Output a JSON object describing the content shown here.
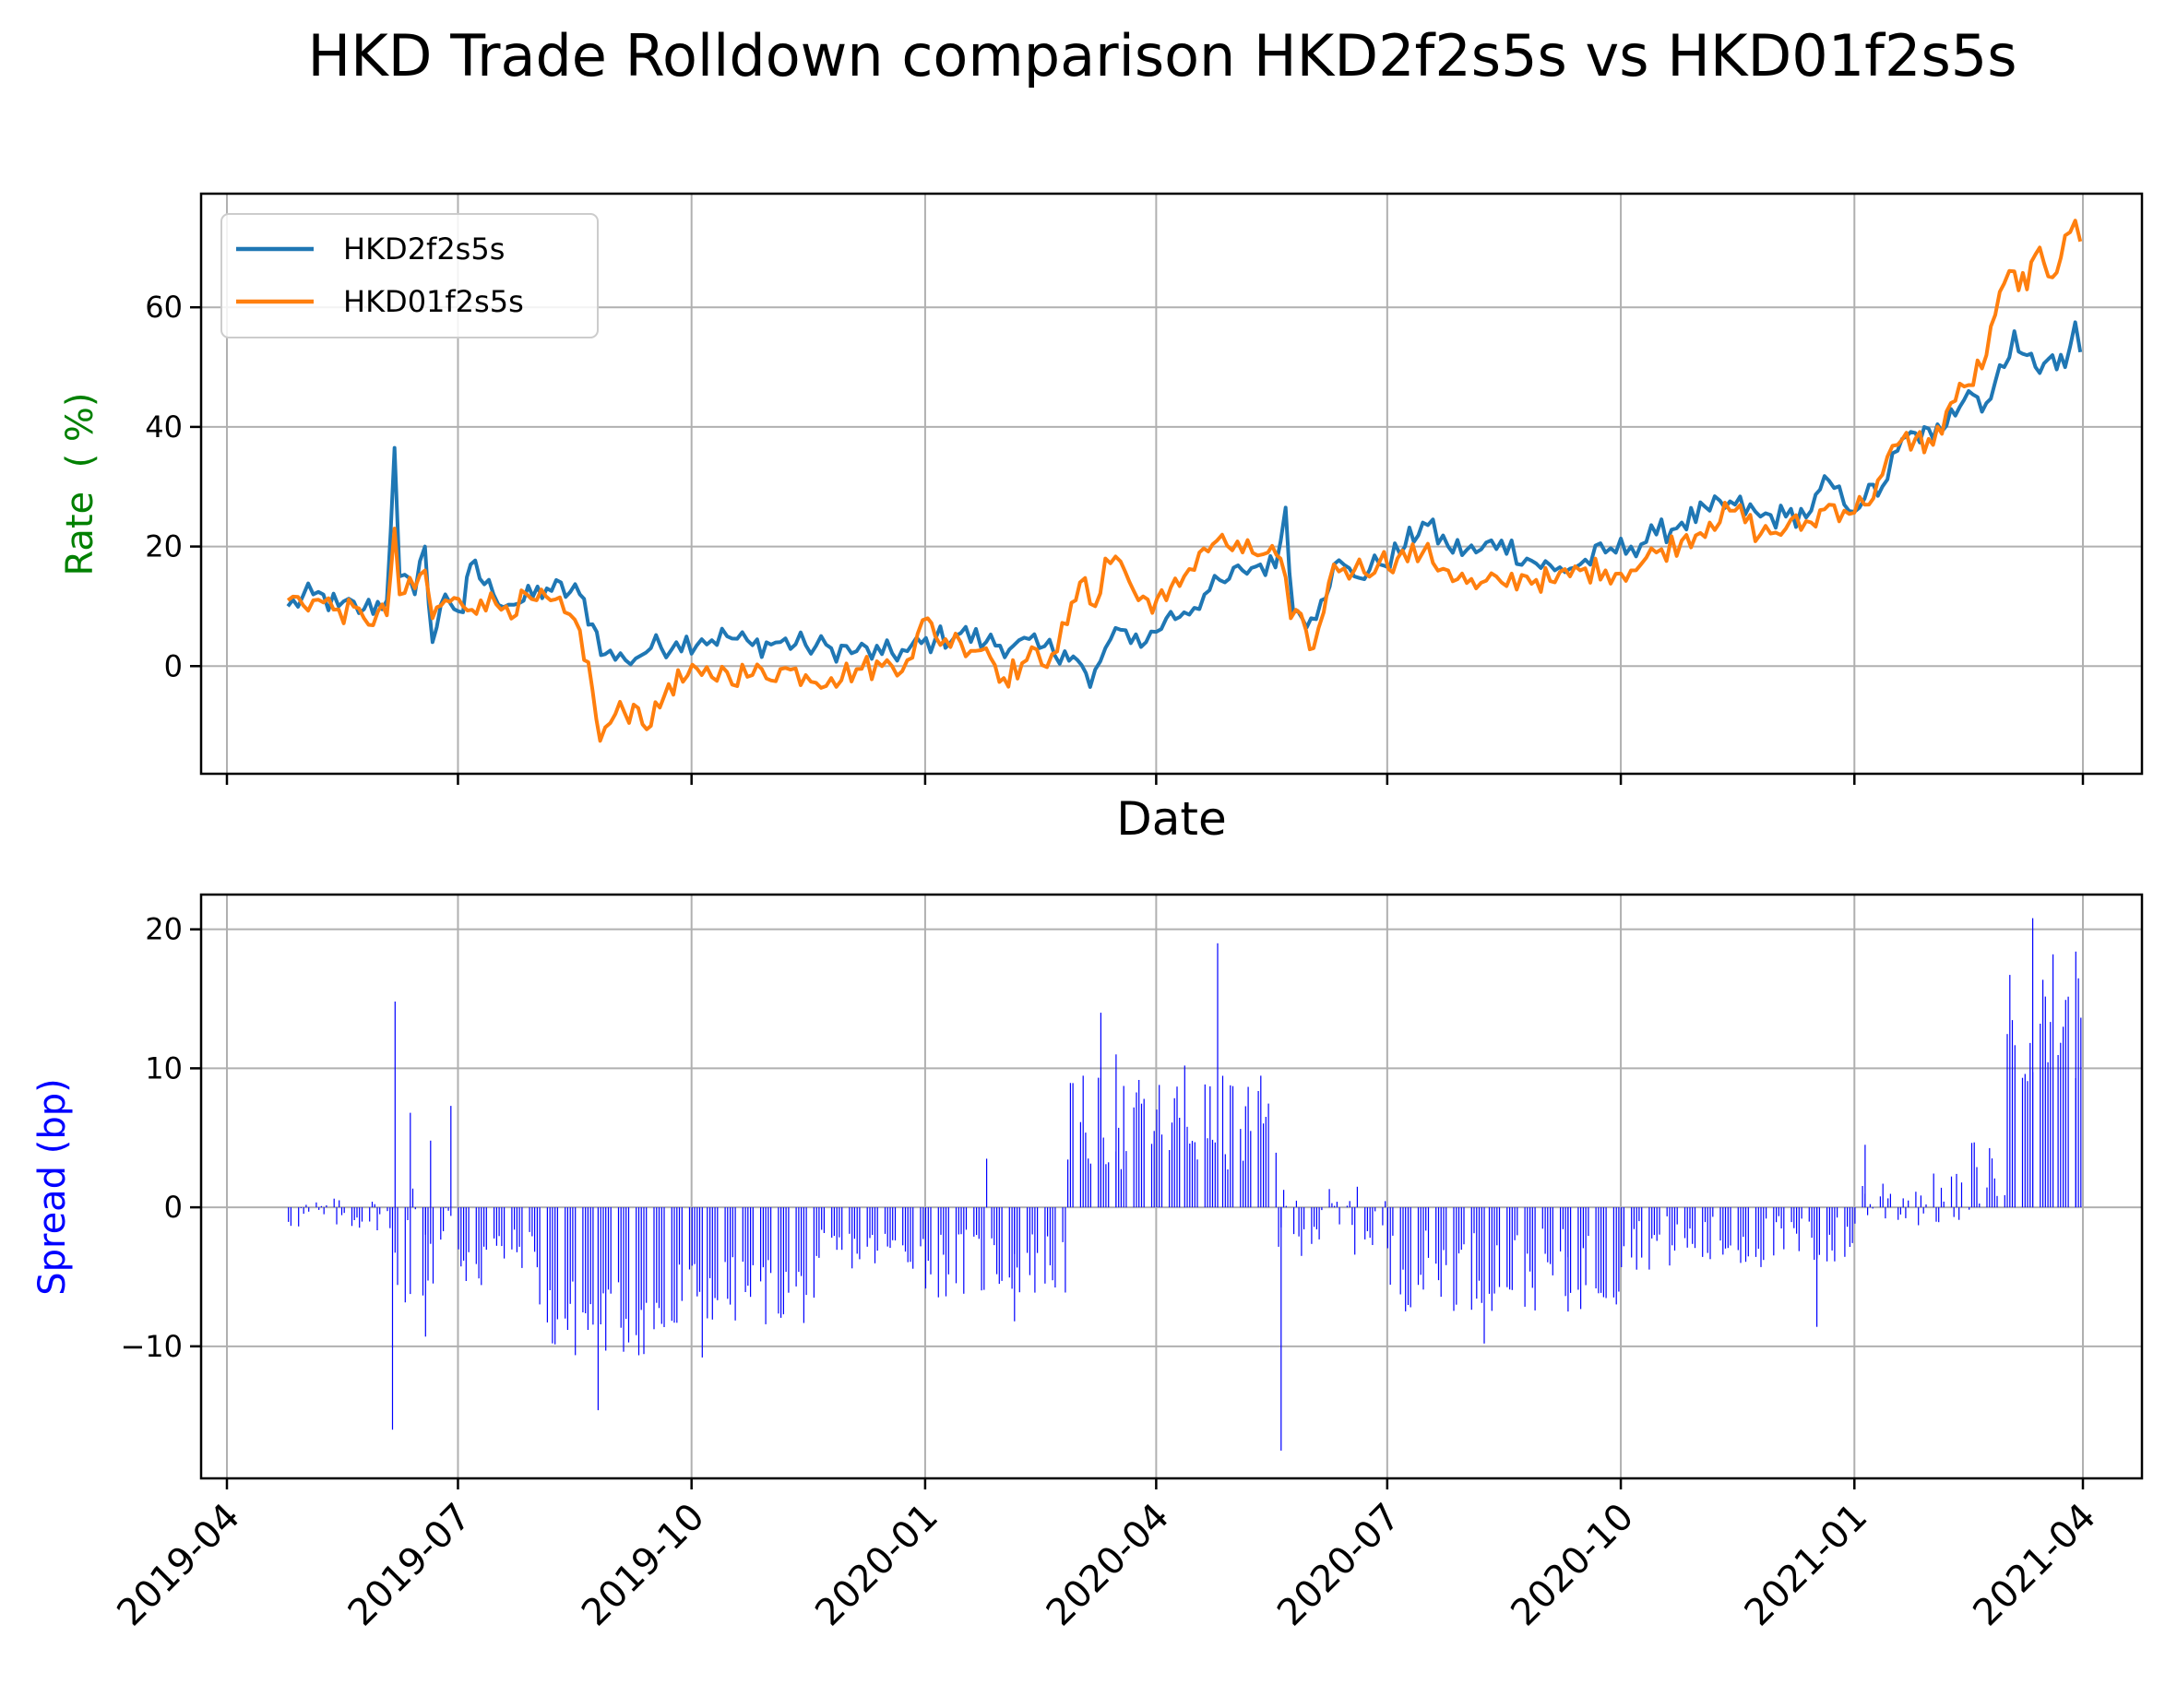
{
  "chart_data": [
    {
      "type": "line",
      "title": "HKD Trade Rolldown comparison HKD2f2s5s vs HKD01f2s5s",
      "xlabel": "Date",
      "ylabel": "Rate  ( %)",
      "ylabel_color": "#008000",
      "ylim": [
        -18,
        79
      ],
      "yticks": [
        0,
        20,
        40,
        60
      ],
      "xticks": [
        "2019-04",
        "2019-07",
        "2019-10",
        "2020-01",
        "2020-04",
        "2020-07",
        "2020-10",
        "2021-01",
        "2021-04"
      ],
      "grid": true,
      "legend_position": "top-left",
      "series": [
        {
          "name": "HKD2f2s5s",
          "color": "#1f77b4",
          "points": [
            [
              "2019-04-25",
              10
            ],
            [
              "2019-05-05",
              12
            ],
            [
              "2019-05-15",
              10
            ],
            [
              "2019-05-25",
              9.5
            ],
            [
              "2019-06-03",
              11
            ],
            [
              "2019-06-06",
              36.5
            ],
            [
              "2019-06-08",
              15
            ],
            [
              "2019-06-14",
              12
            ],
            [
              "2019-06-18",
              20
            ],
            [
              "2019-06-21",
              4
            ],
            [
              "2019-06-26",
              12
            ],
            [
              "2019-07-03",
              9
            ],
            [
              "2019-07-06",
              17
            ],
            [
              "2019-07-15",
              12
            ],
            [
              "2019-07-25",
              10.5
            ],
            [
              "2019-08-05",
              13
            ],
            [
              "2019-08-18",
              12
            ],
            [
              "2019-08-23",
              7
            ],
            [
              "2019-08-28",
              2
            ],
            [
              "2019-09-05",
              1
            ],
            [
              "2019-09-15",
              3
            ],
            [
              "2019-09-25",
              4
            ],
            [
              "2019-10-05",
              4.5
            ],
            [
              "2019-10-15",
              5
            ],
            [
              "2019-10-25",
              3.5
            ],
            [
              "2019-11-05",
              4
            ],
            [
              "2019-11-15",
              3.5
            ],
            [
              "2019-11-25",
              3
            ],
            [
              "2019-12-05",
              2.5
            ],
            [
              "2019-12-15",
              2
            ],
            [
              "2019-12-25",
              2.5
            ],
            [
              "2020-01-05",
              4.5
            ],
            [
              "2020-01-15",
              5.5
            ],
            [
              "2020-01-25",
              4
            ],
            [
              "2020-02-05",
              3.5
            ],
            [
              "2020-02-15",
              3
            ],
            [
              "2020-02-25",
              2.5
            ],
            [
              "2020-03-01",
              1
            ],
            [
              "2020-03-06",
              -3.5
            ],
            [
              "2020-03-12",
              3
            ],
            [
              "2020-03-20",
              6
            ],
            [
              "2020-03-28",
              4
            ],
            [
              "2020-04-05",
              8
            ],
            [
              "2020-04-12",
              9
            ],
            [
              "2020-04-20",
              12
            ],
            [
              "2020-04-28",
              14
            ],
            [
              "2020-05-05",
              16
            ],
            [
              "2020-05-12",
              17
            ],
            [
              "2020-05-18",
              16.5
            ],
            [
              "2020-05-22",
              26.5
            ],
            [
              "2020-05-25",
              9
            ],
            [
              "2020-06-01",
              8
            ],
            [
              "2020-06-05",
              11
            ],
            [
              "2020-06-10",
              17
            ],
            [
              "2020-06-18",
              15
            ],
            [
              "2020-06-28",
              17
            ],
            [
              "2020-07-08",
              20
            ],
            [
              "2020-07-15",
              24
            ],
            [
              "2020-07-25",
              20
            ],
            [
              "2020-08-05",
              19
            ],
            [
              "2020-08-15",
              21
            ],
            [
              "2020-08-25",
              18
            ],
            [
              "2020-09-05",
              16
            ],
            [
              "2020-09-15",
              17
            ],
            [
              "2020-09-25",
              19
            ],
            [
              "2020-10-05",
              20
            ],
            [
              "2020-10-15",
              22
            ],
            [
              "2020-10-25",
              24
            ],
            [
              "2020-11-05",
              26
            ],
            [
              "2020-11-15",
              27
            ],
            [
              "2020-11-25",
              25
            ],
            [
              "2020-12-05",
              25
            ],
            [
              "2020-12-15",
              26
            ],
            [
              "2020-12-22",
              31
            ],
            [
              "2020-12-28",
              27
            ],
            [
              "2021-01-05",
              28
            ],
            [
              "2021-01-12",
              30
            ],
            [
              "2021-01-18",
              36
            ],
            [
              "2021-01-25",
              39
            ],
            [
              "2021-02-01",
              38
            ],
            [
              "2021-02-08",
              43
            ],
            [
              "2021-02-15",
              46
            ],
            [
              "2021-02-22",
              44
            ],
            [
              "2021-03-01",
              50
            ],
            [
              "2021-03-05",
              56
            ],
            [
              "2021-03-10",
              52
            ],
            [
              "2021-03-15",
              49
            ],
            [
              "2021-03-20",
              52
            ],
            [
              "2021-03-25",
              50
            ],
            [
              "2021-03-29",
              57.5
            ],
            [
              "2021-03-31",
              52.5
            ]
          ]
        },
        {
          "name": "HKD01f2s5s",
          "color": "#ff7f0e",
          "points": [
            [
              "2019-04-25",
              11
            ],
            [
              "2019-05-05",
              11
            ],
            [
              "2019-05-15",
              9.5
            ],
            [
              "2019-05-25",
              8
            ],
            [
              "2019-06-03",
              8.5
            ],
            [
              "2019-06-06",
              23
            ],
            [
              "2019-06-08",
              12
            ],
            [
              "2019-06-14",
              13
            ],
            [
              "2019-06-18",
              16
            ],
            [
              "2019-06-21",
              8
            ],
            [
              "2019-06-26",
              11
            ],
            [
              "2019-07-03",
              10
            ],
            [
              "2019-07-10",
              11
            ],
            [
              "2019-07-20",
              10
            ],
            [
              "2019-08-01",
              11
            ],
            [
              "2019-08-12",
              9
            ],
            [
              "2019-08-18",
              6
            ],
            [
              "2019-08-23",
              -4
            ],
            [
              "2019-08-26",
              -12.5
            ],
            [
              "2019-09-01",
              -8
            ],
            [
              "2019-09-10",
              -7
            ],
            [
              "2019-09-15",
              -10
            ],
            [
              "2019-09-22",
              -3
            ],
            [
              "2019-10-05",
              -1.5
            ],
            [
              "2019-10-15",
              -1
            ],
            [
              "2019-10-25",
              -1.5
            ],
            [
              "2019-11-05",
              -0.5
            ],
            [
              "2019-11-15",
              -1.5
            ],
            [
              "2019-11-25",
              -2
            ],
            [
              "2019-12-05",
              -0.5
            ],
            [
              "2019-12-15",
              0
            ],
            [
              "2019-12-25",
              1
            ],
            [
              "2020-01-02",
              8
            ],
            [
              "2020-01-05",
              5
            ],
            [
              "2020-01-15",
              4
            ],
            [
              "2020-01-25",
              3
            ],
            [
              "2020-02-01",
              -2
            ],
            [
              "2020-02-10",
              1
            ],
            [
              "2020-02-20",
              2
            ],
            [
              "2020-02-26",
              7
            ],
            [
              "2020-03-02",
              14
            ],
            [
              "2020-03-08",
              10
            ],
            [
              "2020-03-12",
              18
            ],
            [
              "2020-03-18",
              17.5
            ],
            [
              "2020-03-25",
              11
            ],
            [
              "2020-04-05",
              11
            ],
            [
              "2020-04-12",
              15
            ],
            [
              "2020-04-18",
              19
            ],
            [
              "2020-04-25",
              21
            ],
            [
              "2020-05-05",
              19
            ],
            [
              "2020-05-15",
              19
            ],
            [
              "2020-05-20",
              18
            ],
            [
              "2020-05-24",
              8
            ],
            [
              "2020-05-30",
              6
            ],
            [
              "2020-06-02",
              3
            ],
            [
              "2020-06-06",
              9
            ],
            [
              "2020-06-10",
              17
            ],
            [
              "2020-06-18",
              16
            ],
            [
              "2020-06-28",
              17.5
            ],
            [
              "2020-07-05",
              18
            ],
            [
              "2020-07-15",
              19
            ],
            [
              "2020-07-25",
              16
            ],
            [
              "2020-08-05",
              13
            ],
            [
              "2020-08-15",
              14
            ],
            [
              "2020-08-25",
              15
            ],
            [
              "2020-09-05",
              14
            ],
            [
              "2020-09-15",
              16
            ],
            [
              "2020-09-25",
              16
            ],
            [
              "2020-10-05",
              16
            ],
            [
              "2020-10-15",
              19
            ],
            [
              "2020-10-25",
              21
            ],
            [
              "2020-11-05",
              24
            ],
            [
              "2020-11-15",
              26
            ],
            [
              "2020-11-25",
              22
            ],
            [
              "2020-12-05",
              23
            ],
            [
              "2020-12-15",
              24
            ],
            [
              "2020-12-22",
              27
            ],
            [
              "2020-12-28",
              26
            ],
            [
              "2021-01-05",
              27
            ],
            [
              "2021-01-12",
              32
            ],
            [
              "2021-01-18",
              37
            ],
            [
              "2021-01-25",
              38
            ],
            [
              "2021-02-01",
              37
            ],
            [
              "2021-02-08",
              44
            ],
            [
              "2021-02-15",
              47
            ],
            [
              "2021-02-22",
              52
            ],
            [
              "2021-03-01",
              64
            ],
            [
              "2021-03-05",
              66
            ],
            [
              "2021-03-10",
              63
            ],
            [
              "2021-03-15",
              70
            ],
            [
              "2021-03-20",
              65
            ],
            [
              "2021-03-25",
              72
            ],
            [
              "2021-03-29",
              74.5
            ],
            [
              "2021-03-31",
              71
            ]
          ]
        }
      ]
    },
    {
      "type": "bar",
      "xlabel": "",
      "ylabel": "Spread (bp)",
      "ylabel_color": "#0000ff",
      "bar_color": "#0000ff",
      "ylim": [
        -19.5,
        22.5
      ],
      "yticks": [
        -10,
        0,
        10,
        20
      ],
      "xticks": [
        "2019-04",
        "2019-07",
        "2019-10",
        "2020-01",
        "2020-04",
        "2020-07",
        "2020-10",
        "2021-01",
        "2021-04"
      ],
      "grid": true,
      "spikes": [
        [
          "2019-06-06",
          14.8
        ],
        [
          "2019-06-05",
          -16
        ],
        [
          "2019-06-12",
          6.8
        ],
        [
          "2019-06-18",
          -9.3
        ],
        [
          "2019-06-20",
          4.8
        ],
        [
          "2019-06-28",
          7.3
        ],
        [
          "2019-08-25",
          -14.6
        ],
        [
          "2019-10-05",
          -10.8
        ],
        [
          "2020-01-25",
          3.5
        ],
        [
          "2020-02-05",
          -8.2
        ],
        [
          "2020-03-10",
          14
        ],
        [
          "2020-03-16",
          11
        ],
        [
          "2020-04-12",
          10.2
        ],
        [
          "2020-04-25",
          19
        ],
        [
          "2020-05-20",
          -17.5
        ],
        [
          "2020-08-08",
          -9.8
        ],
        [
          "2020-09-10",
          -7.5
        ],
        [
          "2020-12-17",
          -8.6
        ],
        [
          "2021-01-05",
          4.5
        ],
        [
          "2021-03-12",
          20.8
        ],
        [
          "2021-03-20",
          18.2
        ],
        [
          "2021-03-29",
          18.4
        ]
      ],
      "regimes": [
        [
          "2019-04-25",
          "2019-06-02",
          -0.5,
          1.2
        ],
        [
          "2019-06-03",
          "2019-07-10",
          -2.5,
          5
        ],
        [
          "2019-07-11",
          "2019-08-01",
          -3,
          1.5
        ],
        [
          "2019-08-02",
          "2019-09-25",
          -8,
          3
        ],
        [
          "2019-09-26",
          "2019-11-20",
          -6,
          2.5
        ],
        [
          "2019-11-21",
          "2019-12-31",
          -3,
          1.5
        ],
        [
          "2020-01-01",
          "2020-02-25",
          -4,
          2.5
        ],
        [
          "2020-02-26",
          "2020-05-18",
          6,
          3.5
        ],
        [
          "2020-05-19",
          "2020-06-30",
          -1,
          2.5
        ],
        [
          "2020-07-01",
          "2020-09-30",
          -4.5,
          3
        ],
        [
          "2020-10-01",
          "2020-12-31",
          -2.5,
          2
        ],
        [
          "2021-01-01",
          "2021-02-15",
          0.5,
          2
        ],
        [
          "2021-02-16",
          "2021-03-01",
          2.5,
          2.5
        ],
        [
          "2021-03-02",
          "2021-03-31",
          13,
          4
        ]
      ]
    }
  ]
}
